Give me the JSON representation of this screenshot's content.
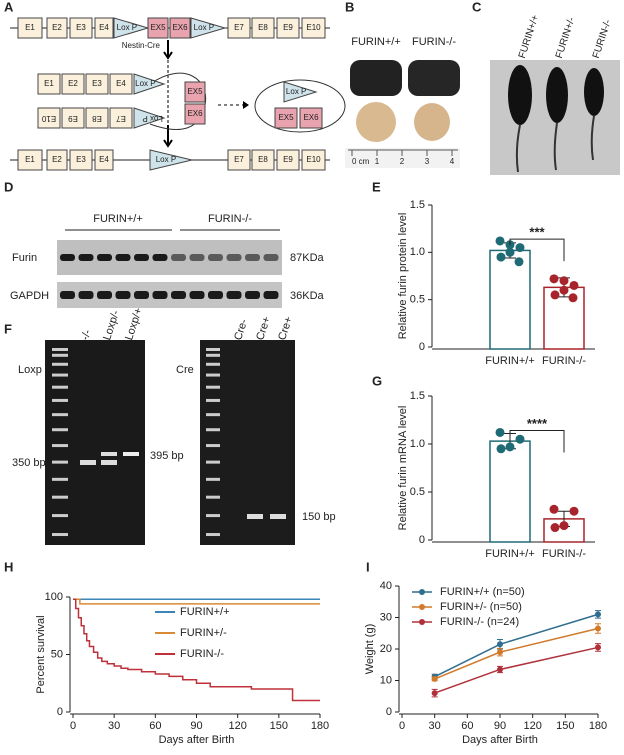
{
  "panels": [
    "A",
    "B",
    "C",
    "D",
    "E",
    "F",
    "G",
    "H",
    "I"
  ],
  "schematic": {
    "top": [
      "E1",
      "E2",
      "E3",
      "E4",
      "Lox P",
      "EX5",
      "EX6",
      "Lox P",
      "E7",
      "E8",
      "E9",
      "E10"
    ],
    "cre": "Nestin-Cre",
    "mid_upper": [
      "E1",
      "E2",
      "E3",
      "E4",
      "Lox P"
    ],
    "mid_lower": [
      "E10",
      "E9",
      "E8",
      "E7",
      "Lox P"
    ],
    "mid_exons": [
      "EX5",
      "EX6"
    ],
    "circle": [
      "Lox P",
      "EX5",
      "EX6"
    ],
    "bottom": [
      "E1",
      "E2",
      "E3",
      "E4",
      "Lox P",
      "E7",
      "E8",
      "E9",
      "E10"
    ]
  },
  "photos": {
    "brain_labels": [
      "FURIN+/+",
      "FURIN-/-"
    ],
    "ruler": [
      "0 cm",
      "1",
      "2",
      "3",
      "4"
    ],
    "mouse_labels": [
      "FURIN+/+",
      "FURIN+/-",
      "FURIN-/-"
    ]
  },
  "blot": {
    "groups": [
      "FURIN+/+",
      "FURIN-/-"
    ],
    "rows": [
      "Furin",
      "GAPDH"
    ],
    "sizes": [
      "87KDa",
      "36KDa"
    ]
  },
  "gel": {
    "left_title": "Loxp",
    "left_lanes": [
      "-/-",
      "Loxp/-",
      "Loxp/+"
    ],
    "left_marker": "350 bp",
    "left_band": "395 bp",
    "right_title": "Cre",
    "right_lanes": [
      "Cre-",
      "Cre+",
      "Cre+"
    ],
    "right_band": "150 bp"
  },
  "chart_data": [
    {
      "type": "bar",
      "ylabel": "Relative furin protein level",
      "categories": [
        "FURIN+/+",
        "FURIN-/-"
      ],
      "values": [
        1.02,
        0.63
      ],
      "errors": [
        0.08,
        0.1
      ],
      "colors": [
        "#1f6b75",
        "#a8242c"
      ],
      "points": [
        [
          1.12,
          1.05,
          1.0,
          0.95,
          0.9,
          1.08
        ],
        [
          0.72,
          0.65,
          0.6,
          0.55,
          0.52,
          0.7
        ]
      ],
      "annotation": "***",
      "ylim": [
        0,
        1.5
      ],
      "yticks": [
        0,
        0.5,
        {
          "value": 1,
          "label": "1.0"
        },
        1.5
      ]
    },
    {
      "type": "bar",
      "ylabel": "Relative furin mRNA level",
      "categories": [
        "FURIN+/+",
        "FURIN-/-"
      ],
      "values": [
        1.03,
        0.22
      ],
      "errors": [
        0.08,
        0.08
      ],
      "colors": [
        "#1f6b75",
        "#a8242c"
      ],
      "points": [
        [
          1.12,
          1.05,
          0.97,
          0.95
        ],
        [
          0.32,
          0.3,
          0.15,
          0.13
        ]
      ],
      "annotation": "****",
      "ylim": [
        0,
        1.5
      ],
      "yticks": [
        0,
        0.5,
        {
          "value": 1,
          "label": "1.0"
        },
        1.5
      ]
    },
    {
      "type": "step",
      "xlabel": "Days after Birth",
      "ylabel": "Percent survival",
      "xlim": [
        0,
        180
      ],
      "ylim": [
        0,
        100
      ],
      "xticks": [
        0,
        30,
        60,
        90,
        120,
        150,
        180
      ],
      "yticks": [
        0,
        50,
        100
      ],
      "series": [
        {
          "name": "FURIN+/+",
          "color": "#3a86b8",
          "x": [
            0,
            180
          ],
          "values": [
            98,
            98
          ]
        },
        {
          "name": "FURIN+/-",
          "color": "#d98a35",
          "x": [
            0,
            5,
            180
          ],
          "values": [
            98,
            94,
            94
          ]
        },
        {
          "name": "FURIN-/-",
          "color": "#c0303a",
          "x": [
            0,
            2,
            4,
            6,
            8,
            10,
            12,
            15,
            18,
            21,
            25,
            30,
            35,
            40,
            50,
            60,
            70,
            80,
            90,
            100,
            130,
            160,
            180
          ],
          "values": [
            98,
            90,
            82,
            75,
            68,
            62,
            57,
            52,
            47,
            44,
            42,
            40,
            38,
            37,
            35,
            33,
            31,
            28,
            25,
            22,
            20,
            10,
            10
          ]
        }
      ]
    },
    {
      "type": "line",
      "xlabel": "Days after Birth",
      "ylabel": "Weight (g)",
      "xlim": [
        0,
        180
      ],
      "ylim": [
        0,
        40
      ],
      "xticks": [
        0,
        30,
        60,
        90,
        120,
        150,
        180
      ],
      "yticks": [
        0,
        10,
        20,
        30,
        40
      ],
      "series": [
        {
          "name": "FURIN+/+ (n=50)",
          "color": "#2f6e8e",
          "x": [
            30,
            90,
            180
          ],
          "values": [
            11.2,
            21.5,
            31
          ],
          "errors": [
            0.8,
            1.5,
            1.2
          ]
        },
        {
          "name": "FURIN+/- (n=50)",
          "color": "#d07a2a",
          "x": [
            30,
            90,
            180
          ],
          "values": [
            10.5,
            19,
            26.5
          ],
          "errors": [
            0.6,
            1.2,
            1.5
          ]
        },
        {
          "name": "FURIN-/- (n=24)",
          "color": "#b0303a",
          "x": [
            30,
            90,
            180
          ],
          "values": [
            6,
            13.5,
            20.5
          ],
          "errors": [
            1.2,
            1,
            1.2
          ]
        }
      ]
    }
  ]
}
